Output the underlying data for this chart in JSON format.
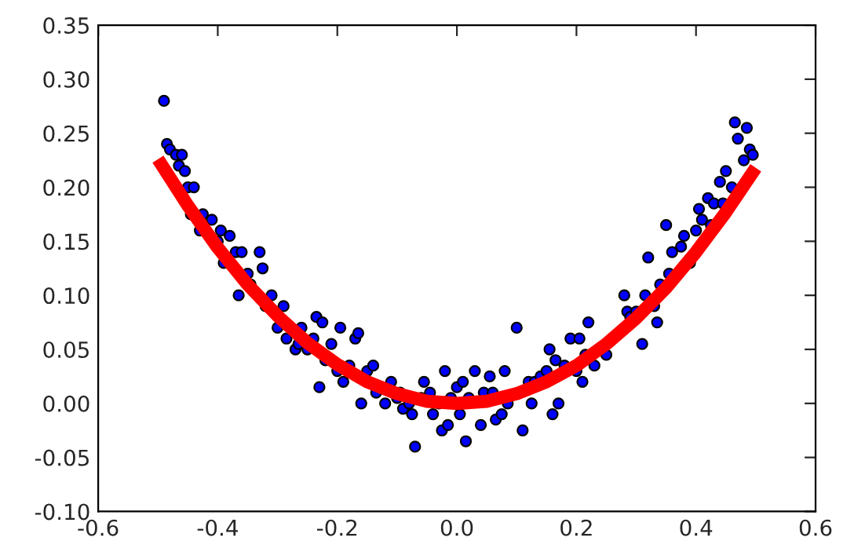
{
  "chart_data": {
    "type": "scatter",
    "xlim": [
      -0.6,
      0.6
    ],
    "ylim": [
      -0.1,
      0.35
    ],
    "xticks": [
      {
        "value": -0.6,
        "label": "-0.6"
      },
      {
        "value": -0.4,
        "label": "-0.4"
      },
      {
        "value": -0.2,
        "label": "-0.2"
      },
      {
        "value": 0,
        "label": "0.0"
      },
      {
        "value": 0.2,
        "label": "0.2"
      },
      {
        "value": 0.4,
        "label": "0.4"
      },
      {
        "value": 0.6,
        "label": "0.6"
      }
    ],
    "yticks": [
      {
        "value": -0.1,
        "label": "-0.10"
      },
      {
        "value": -0.05,
        "label": "-0.05"
      },
      {
        "value": 0,
        "label": "0.00"
      },
      {
        "value": 0.05,
        "label": "0.05"
      },
      {
        "value": 0.1,
        "label": "0.10"
      },
      {
        "value": 0.15,
        "label": "0.15"
      },
      {
        "value": 0.2,
        "label": "0.20"
      },
      {
        "value": 0.25,
        "label": "0.25"
      },
      {
        "value": 0.3,
        "label": "0.30"
      },
      {
        "value": 0.35,
        "label": "0.35"
      }
    ],
    "series": [
      {
        "color": "#0000ff",
        "marker": "circle",
        "x": [
          -0.49,
          -0.485,
          -0.48,
          -0.47,
          -0.465,
          -0.46,
          -0.455,
          -0.45,
          -0.445,
          -0.44,
          -0.43,
          -0.425,
          -0.41,
          -0.4,
          -0.395,
          -0.39,
          -0.38,
          -0.37,
          -0.365,
          -0.36,
          -0.35,
          -0.345,
          -0.33,
          -0.325,
          -0.32,
          -0.31,
          -0.3,
          -0.29,
          -0.285,
          -0.27,
          -0.265,
          -0.26,
          -0.25,
          -0.24,
          -0.235,
          -0.23,
          -0.225,
          -0.22,
          -0.21,
          -0.2,
          -0.195,
          -0.19,
          -0.18,
          -0.17,
          -0.165,
          -0.16,
          -0.15,
          -0.14,
          -0.135,
          -0.12,
          -0.11,
          -0.1,
          -0.095,
          -0.09,
          -0.08,
          -0.075,
          -0.07,
          -0.06,
          -0.055,
          -0.045,
          -0.04,
          -0.03,
          -0.025,
          -0.02,
          -0.015,
          -0.01,
          0.0,
          0.005,
          0.01,
          0.015,
          0.02,
          0.03,
          0.04,
          0.045,
          0.055,
          0.06,
          0.065,
          0.075,
          0.08,
          0.085,
          0.1,
          0.11,
          0.12,
          0.125,
          0.13,
          0.14,
          0.15,
          0.155,
          0.16,
          0.165,
          0.17,
          0.18,
          0.19,
          0.2,
          0.205,
          0.21,
          0.215,
          0.22,
          0.23,
          0.25,
          0.28,
          0.285,
          0.29,
          0.3,
          0.31,
          0.315,
          0.32,
          0.33,
          0.335,
          0.34,
          0.35,
          0.355,
          0.36,
          0.375,
          0.38,
          0.39,
          0.4,
          0.405,
          0.41,
          0.42,
          0.425,
          0.43,
          0.44,
          0.445,
          0.45,
          0.46,
          0.465,
          0.47,
          0.48,
          0.485,
          0.49,
          0.495
        ],
        "values": [
          0.28,
          0.24,
          0.235,
          0.23,
          0.22,
          0.23,
          0.215,
          0.2,
          0.175,
          0.2,
          0.16,
          0.175,
          0.17,
          0.15,
          0.16,
          0.13,
          0.155,
          0.14,
          0.1,
          0.14,
          0.12,
          0.11,
          0.14,
          0.125,
          0.09,
          0.1,
          0.07,
          0.09,
          0.06,
          0.05,
          0.055,
          0.07,
          0.05,
          0.06,
          0.08,
          0.015,
          0.075,
          0.04,
          0.055,
          0.03,
          0.07,
          0.02,
          0.035,
          0.06,
          0.065,
          0.0,
          0.03,
          0.035,
          0.01,
          0.0,
          0.02,
          0.005,
          0.01,
          -0.005,
          0.0,
          -0.01,
          -0.04,
          0.005,
          0.02,
          0.01,
          -0.01,
          0.0,
          -0.025,
          0.03,
          -0.02,
          0.005,
          0.015,
          -0.01,
          0.02,
          -0.035,
          0.005,
          0.03,
          -0.02,
          0.01,
          0.025,
          0.01,
          -0.015,
          -0.01,
          0.03,
          0.0,
          0.07,
          -0.025,
          0.02,
          0.0,
          0.02,
          0.025,
          0.03,
          0.05,
          -0.01,
          0.04,
          0.0,
          0.035,
          0.06,
          0.03,
          0.06,
          0.02,
          0.045,
          0.075,
          0.035,
          0.045,
          0.1,
          0.085,
          0.08,
          0.085,
          0.055,
          0.1,
          0.135,
          0.09,
          0.075,
          0.11,
          0.165,
          0.12,
          0.14,
          0.145,
          0.155,
          0.13,
          0.16,
          0.18,
          0.17,
          0.19,
          0.165,
          0.185,
          0.205,
          0.185,
          0.215,
          0.2,
          0.26,
          0.245,
          0.225,
          0.255,
          0.235,
          0.23
        ]
      },
      {
        "type": "line",
        "color": "#ff0000",
        "marker": "none",
        "line_style": "solid",
        "x": [
          -0.5,
          -0.45,
          -0.4,
          -0.35,
          -0.3,
          -0.25,
          -0.2,
          -0.15,
          -0.1,
          -0.05,
          0,
          0.05,
          0.1,
          0.15,
          0.2,
          0.25,
          0.3,
          0.35,
          0.4,
          0.45,
          0.5
        ],
        "values": [
          0.226,
          0.183,
          0.144,
          0.11,
          0.081,
          0.056,
          0.036,
          0.02,
          0.009,
          0.002,
          0.0,
          0.002,
          0.009,
          0.02,
          0.035,
          0.055,
          0.079,
          0.107,
          0.14,
          0.177,
          0.218
        ]
      }
    ]
  }
}
